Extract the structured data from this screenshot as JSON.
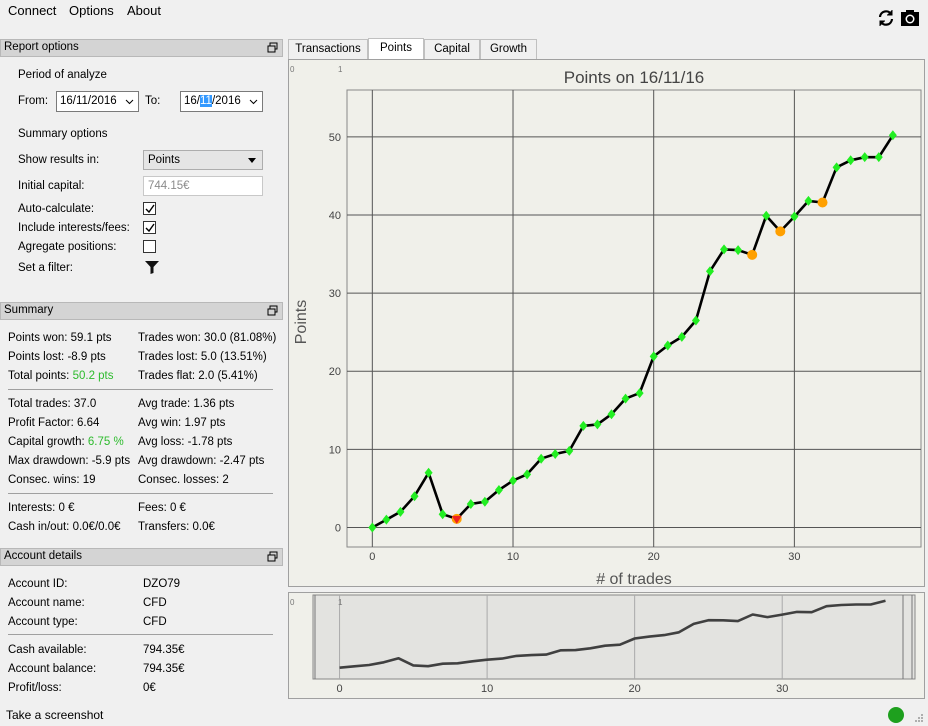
{
  "menu": {
    "connect": "Connect",
    "options": "Options",
    "about": "About"
  },
  "toolbar_icons": [
    "refresh-icon",
    "camera-icon"
  ],
  "report_options": {
    "title": "Report options",
    "period_label": "Period of analyze",
    "from_label": "From:",
    "from_value": "16/11/2016",
    "to_label": "To:",
    "to_value_pre": "16/",
    "to_value_sel": "11",
    "to_value_post": "/2016",
    "summary_label": "Summary options",
    "show_results_label": "Show results in:",
    "show_results_value": "Points",
    "initial_capital_label": "Initial capital:",
    "initial_capital_value": "744.15€",
    "auto_calc_label": "Auto-calculate:",
    "auto_calc": true,
    "interests_label": "Include interests/fees:",
    "interests": true,
    "aggregate_label": "Agregate positions:",
    "aggregate": false,
    "filter_label": "Set a filter:"
  },
  "summary": {
    "title": "Summary",
    "points_won": "Points won: 59.1 pts",
    "points_lost": "Points lost: -8.9 pts",
    "total_points_label": "Total points: ",
    "total_points_value": "50.2 pts",
    "trades_won": "Trades won: 30.0 (81.08%)",
    "trades_lost": "Trades lost: 5.0 (13.51%)",
    "trades_flat": "Trades flat: 2.0 (5.41%)",
    "total_trades": "Total trades: 37.0",
    "profit_factor": "Profit Factor: 6.64",
    "capital_growth_label": "Capital growth: ",
    "capital_growth_value": "6.75 %",
    "max_drawdown": "Max drawdown: -5.9 pts",
    "consec_wins": "Consec. wins: 19",
    "avg_trade": "Avg trade: 1.36 pts",
    "avg_win": "Avg win: 1.97 pts",
    "avg_loss": "Avg loss: -1.78 pts",
    "avg_drawdown": "Avg drawdown: -2.47 pts",
    "consec_losses": "Consec. losses: 2",
    "interests": "Interests: 0 €",
    "cash_inout": "Cash in/out: 0.0€/0.0€",
    "fees": "Fees: 0 €",
    "transfers": "Transfers: 0.0€"
  },
  "account": {
    "title": "Account details",
    "id_label": "Account ID:",
    "id_value": "DZO79",
    "name_label": "Account name:",
    "name_value": "CFD",
    "type_label": "Account type:",
    "type_value": "CFD",
    "cash_label": "Cash available:",
    "cash_value": "794.35€",
    "balance_label": "Account balance:",
    "balance_value": "794.35€",
    "pl_label": "Profit/loss:",
    "pl_value": "0€"
  },
  "tabs": [
    "Transactions",
    "Points",
    "Capital",
    "Growth"
  ],
  "active_tab": "Points",
  "status": {
    "text": "Take a screenshot",
    "indicator_color": "#1ea01e"
  },
  "chart_data": {
    "type": "line",
    "title": "Points on 16/11/16",
    "xlabel": "# of trades",
    "ylabel": "Points",
    "corner_labels": [
      "0",
      "1"
    ],
    "xlim": [
      -1.8,
      39
    ],
    "ylim": [
      -2.5,
      56
    ],
    "xticks": [
      0,
      10,
      20,
      30
    ],
    "yticks": [
      0,
      10,
      20,
      30,
      40,
      50
    ],
    "x": [
      0,
      1,
      2,
      3,
      4,
      5,
      6,
      7,
      8,
      9,
      10,
      11,
      12,
      13,
      14,
      15,
      16,
      17,
      18,
      19,
      20,
      21,
      22,
      23,
      24,
      25,
      26,
      27,
      28,
      29,
      30,
      31,
      32,
      33,
      34,
      35,
      36,
      37
    ],
    "values": [
      0,
      1,
      2,
      4,
      7,
      1.7,
      1.1,
      3,
      3.3,
      4.8,
      6,
      6.8,
      8.8,
      9.4,
      9.8,
      13,
      13.2,
      14.5,
      16.5,
      17.2,
      21.9,
      23.3,
      24.4,
      26.5,
      32.8,
      35.6,
      35.5,
      34.9,
      39.9,
      37.9,
      39.8,
      41.8,
      41.6,
      46.1,
      47,
      47.4,
      47.4,
      50.2
    ],
    "markers": [
      "diamond",
      "diamond",
      "diamond",
      "diamond",
      "diamond",
      "diamond",
      "lossdown",
      "diamond",
      "diamond",
      "diamond",
      "diamond",
      "diamond",
      "diamond",
      "diamond",
      "diamond",
      "diamond",
      "diamond",
      "diamond",
      "diamond",
      "diamond",
      "diamond",
      "diamond",
      "diamond",
      "diamond",
      "diamond",
      "diamond",
      "diamond",
      "loss",
      "diamond",
      "loss",
      "diamond",
      "diamond",
      "loss",
      "diamond",
      "diamond",
      "diamond",
      "diamond",
      "diamond"
    ],
    "marker_colors": {
      "win": "#22ee22",
      "loss": "#ffa000",
      "lossdown": "#ee2222"
    },
    "line_color": "#000000",
    "grid": true,
    "overview": {
      "xlim": [
        -1.8,
        39
      ],
      "xticks": [
        0,
        10,
        20,
        30
      ],
      "line_color": "#404040"
    }
  }
}
